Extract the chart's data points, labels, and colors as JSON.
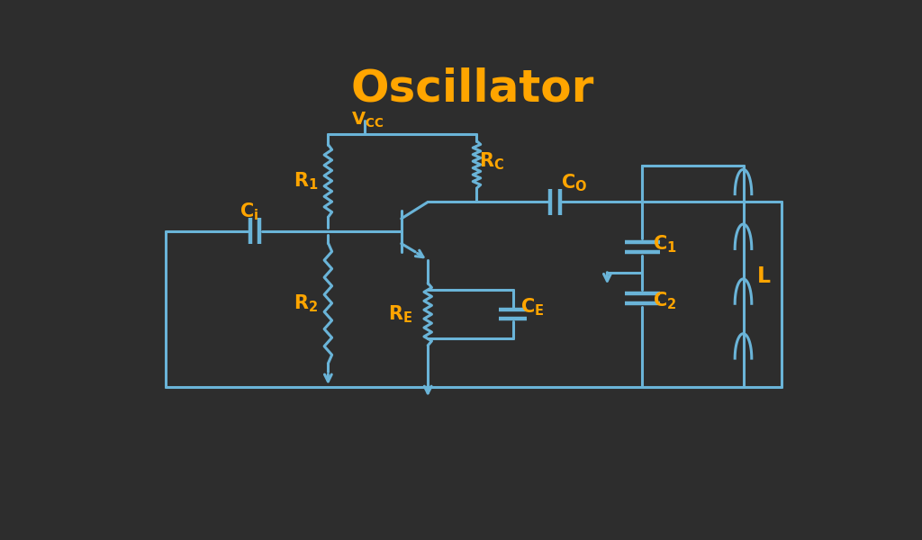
{
  "title": "Oscillator",
  "title_color": "#FFA500",
  "title_fontsize": 36,
  "bg_color": "#2d2d2d",
  "line_color": "#6ab4d8",
  "label_color": "#FFA500",
  "line_width": 2.2
}
